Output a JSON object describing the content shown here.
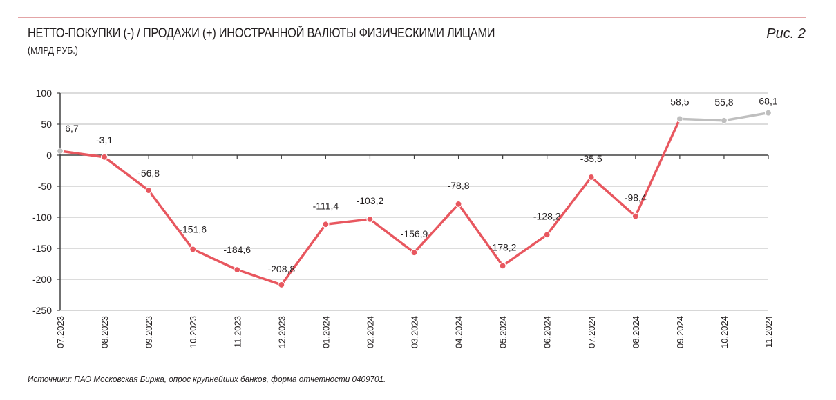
{
  "header": {
    "title": "НЕТТО-ПОКУПКИ (-) / ПРОДАЖИ (+) ИНОСТРАННОЙ ВАЛЮТЫ ФИЗИЧЕСКИМИ ЛИЦАМИ",
    "subtitle": "(МЛРД РУБ.)",
    "figure_label": "Рис. 2"
  },
  "footer": {
    "source": "Источники: ПАО Московская Биржа, опрос крупнейших банков, форма отчетности 0409701."
  },
  "colors": {
    "rule": "#e3a4a6",
    "negative_series": "#e8575f",
    "positive_series": "#bfbfbf",
    "grid": "#c8c8c8",
    "axis": "#404040",
    "text": "#231f20"
  },
  "chart_data": {
    "type": "line",
    "title": "НЕТТО-ПОКУПКИ (-) / ПРОДАЖИ (+) ИНОСТРАННОЙ ВАЛЮТЫ ФИЗИЧЕСКИМИ ЛИЦАМИ",
    "subtitle": "(МЛРД РУБ.)",
    "xlabel": "",
    "ylabel": "млрд руб.",
    "ylim": [
      -250,
      100
    ],
    "yticks": [
      100,
      50,
      0,
      -50,
      -100,
      -150,
      -200,
      -250
    ],
    "grid": true,
    "legend": null,
    "categories": [
      "07.2023",
      "08.2023",
      "09.2023",
      "10.2023",
      "11.2023",
      "12.2023",
      "01.2024",
      "02.2024",
      "03.2024",
      "04.2024",
      "05.2024",
      "06.2024",
      "07.2024",
      "08.2024",
      "09.2024",
      "10.2024",
      "11.2024"
    ],
    "values": [
      6.7,
      -3.1,
      -56.8,
      -151.6,
      -184.6,
      -208.8,
      -111.4,
      -103.2,
      -156.9,
      -78.8,
      -178.2,
      -128.2,
      -35.5,
      -98.4,
      58.5,
      55.8,
      68.1
    ],
    "labels": [
      "6,7",
      "-3,1",
      "-56,8",
      "-151,6",
      "-184,6",
      "-208,8",
      "-111,4",
      "-103,2",
      "-156,9",
      "-78,8",
      "-178,2",
      "-128,2",
      "-35,5",
      "-98,4",
      "58,5",
      "55,8",
      "68,1"
    ],
    "notes": "Negative values (net purchases) drawn in red; positive values (net sales) drawn with gray markers/segments."
  }
}
